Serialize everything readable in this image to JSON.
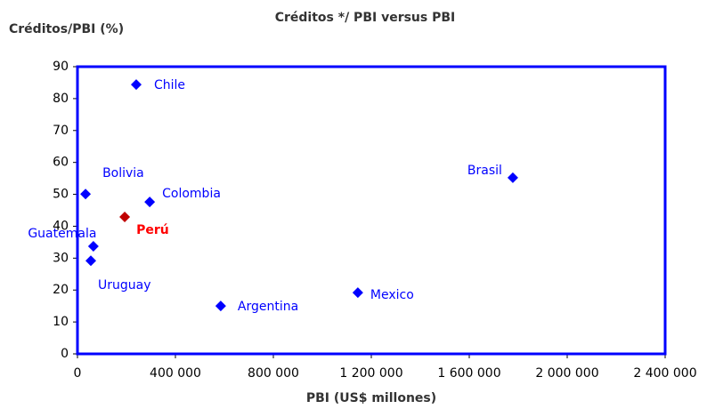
{
  "chart_data": {
    "type": "scatter",
    "title": "Créditos */ PBI versus PBI",
    "y_label": "Créditos/PBI (%)",
    "x_label": "PBI (US$ millones)",
    "labels": [
      "Chile",
      "Bolivia",
      "Colombia",
      "Perú",
      "Guatemala",
      "Uruguay",
      "Argentina",
      "Mexico",
      "Brasil"
    ],
    "x": [
      240000,
      33000,
      295000,
      193000,
      65000,
      54500,
      585000,
      1145000,
      1778000
    ],
    "values": [
      84.4,
      50.1,
      47.6,
      42.9,
      33.7,
      29.2,
      15.0,
      19.2,
      55.2
    ],
    "colors": [
      "#0000ff",
      "#0000ff",
      "#0000ff",
      "#c00000",
      "#0000ff",
      "#0000ff",
      "#0000ff",
      "#0000ff",
      "#0000ff"
    ],
    "xlim": [
      0,
      2400000
    ],
    "xticks": [
      0,
      {
        "value": 400000,
        "label": "400 000"
      },
      {
        "value": 800000,
        "label": "800 000"
      },
      {
        "value": 1200000,
        "label": "1 200 000"
      },
      {
        "value": 1600000,
        "label": "1 600 000"
      },
      {
        "value": 2000000,
        "label": "2 000 000"
      },
      {
        "value": 2400000,
        "label": "2 400 000"
      }
    ],
    "ylim": [
      0,
      90
    ],
    "yticks": [
      0,
      10,
      20,
      30,
      40,
      50,
      60,
      70,
      80,
      90
    ]
  }
}
